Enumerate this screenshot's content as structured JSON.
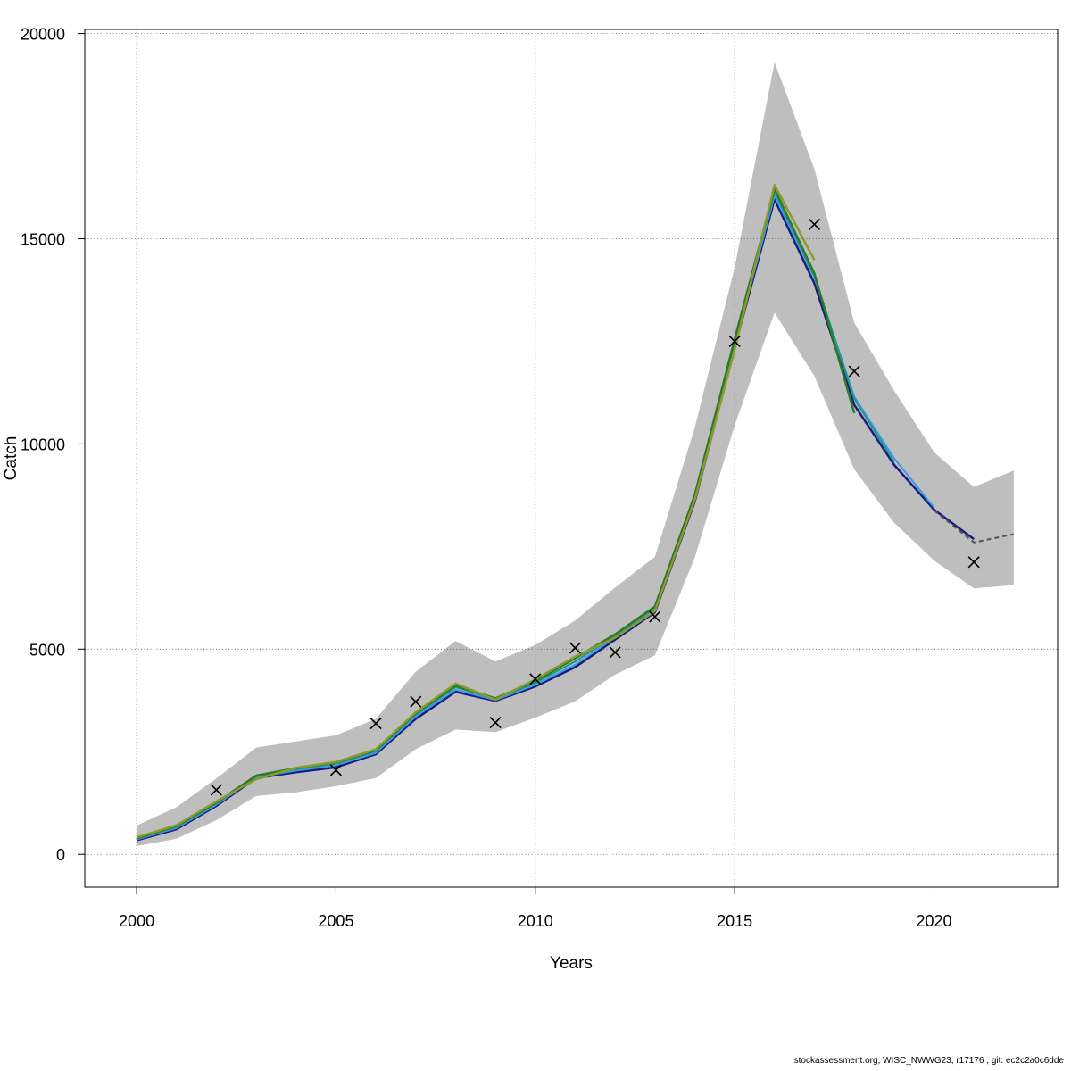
{
  "chart_data": {
    "type": "line",
    "xlabel": "Years",
    "ylabel": "Catch",
    "xlim": [
      1998.7,
      2023.1
    ],
    "ylim": [
      -800,
      20100
    ],
    "x_ticks": [
      2000,
      2005,
      2010,
      2015,
      2020
    ],
    "y_ticks": [
      0,
      5000,
      10000,
      15000,
      20000
    ],
    "grid": true,
    "band": {
      "name": "",
      "color": "#bebebe",
      "x": [
        2000,
        2001,
        2002,
        2003,
        2004,
        2005,
        2006,
        2007,
        2008,
        2009,
        2010,
        2011,
        2012,
        2013,
        2014,
        2015,
        2016,
        2017,
        2018,
        2019,
        2020,
        2021,
        2022
      ],
      "upper": [
        700,
        1150,
        1850,
        2600,
        2750,
        2900,
        3300,
        4450,
        5200,
        4700,
        5100,
        5700,
        6500,
        7250,
        10400,
        14300,
        19300,
        16700,
        12950,
        11300,
        9800,
        8950,
        9350
      ],
      "lower": [
        200,
        380,
        830,
        1420,
        1510,
        1660,
        1860,
        2560,
        3040,
        2980,
        3330,
        3730,
        4380,
        4850,
        7230,
        10450,
        13200,
        11650,
        9380,
        8080,
        7160,
        6480,
        6560
      ]
    },
    "series": [
      {
        "name": "",
        "color": "#1c1c80",
        "width": 2.5,
        "x": [
          2000,
          2001,
          2002,
          2003,
          2004,
          2005,
          2006,
          2007,
          2008,
          2009,
          2010,
          2011,
          2012,
          2013,
          2014,
          2015,
          2016,
          2017,
          2018,
          2019,
          2020,
          2021
        ],
        "y": [
          340,
          610,
          1180,
          1860,
          2000,
          2120,
          2440,
          3300,
          3960,
          3740,
          4090,
          4560,
          5230,
          5900,
          8600,
          12350,
          15960,
          13910,
          10950,
          9490,
          8400,
          7680
        ]
      },
      {
        "name": "",
        "color": "#3a9be8",
        "width": 2,
        "x": [
          2000,
          2001,
          2002,
          2003,
          2004,
          2005,
          2006,
          2007,
          2008,
          2009,
          2010,
          2011,
          2012,
          2013,
          2014,
          2015,
          2016,
          2017,
          2018,
          2019,
          2020
        ],
        "y": [
          360,
          640,
          1210,
          1880,
          2040,
          2170,
          2470,
          3360,
          4010,
          3760,
          4130,
          4620,
          5290,
          5960,
          8660,
          12420,
          16050,
          14050,
          11150,
          9650,
          8450
        ]
      },
      {
        "name": "",
        "color": "#1a9a8a",
        "width": 2,
        "x": [
          2000,
          2001,
          2002,
          2003,
          2004,
          2005,
          2006,
          2007,
          2008,
          2009,
          2010,
          2011,
          2012,
          2013,
          2014,
          2015,
          2016,
          2017,
          2018,
          2019
        ],
        "y": [
          380,
          670,
          1240,
          1900,
          2080,
          2210,
          2510,
          3410,
          4070,
          3790,
          4180,
          4700,
          5330,
          6010,
          8720,
          12480,
          16150,
          14100,
          11100,
          9560
        ]
      },
      {
        "name": "",
        "color": "#2a7a2a",
        "width": 2.5,
        "x": [
          2000,
          2001,
          2002,
          2003,
          2004,
          2005,
          2006,
          2007,
          2008,
          2009,
          2010,
          2011,
          2012,
          2013,
          2014,
          2015,
          2016,
          2017,
          2018
        ],
        "y": [
          390,
          690,
          1260,
          1920,
          2100,
          2240,
          2540,
          3440,
          4110,
          3800,
          4220,
          4780,
          5360,
          6040,
          8760,
          12550,
          16220,
          14150,
          10750
        ]
      },
      {
        "name": "",
        "color": "#8c9a2a",
        "width": 2.5,
        "x": [
          2000,
          2001,
          2002,
          2003,
          2004,
          2005,
          2006,
          2007,
          2008,
          2009,
          2010,
          2011,
          2012,
          2013,
          2014,
          2015,
          2016,
          2017
        ],
        "y": [
          410,
          710,
          1290,
          1830,
          2110,
          2250,
          2560,
          3460,
          4160,
          3770,
          4260,
          4820,
          5280,
          5930,
          8640,
          12300,
          16310,
          14480
        ]
      },
      {
        "name": "",
        "color": "#555555",
        "width": 2,
        "dash": "5,4",
        "x": [
          2020,
          2021,
          2022
        ],
        "y": [
          8380,
          7600,
          7800
        ]
      }
    ],
    "observations": {
      "marker": "x",
      "x": [
        2002,
        2005,
        2006,
        2007,
        2009,
        2010,
        2011,
        2012,
        2013,
        2015,
        2017,
        2018,
        2021
      ],
      "y": [
        1570,
        2050,
        3190,
        3720,
        3210,
        4270,
        5030,
        4920,
        5790,
        12500,
        15350,
        11770,
        7120
      ]
    }
  },
  "footer": "stockassessment.org, WISC_NWWG23, r17176 , git: ec2c2a0c6dde"
}
